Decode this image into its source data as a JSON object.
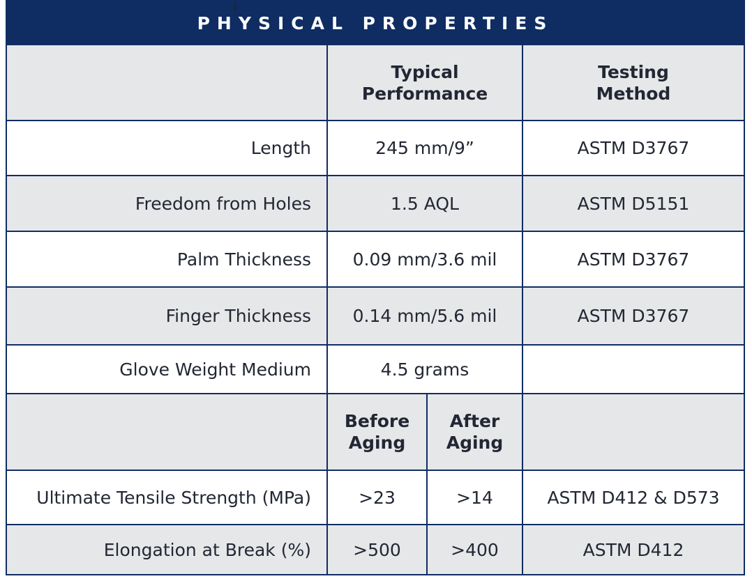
{
  "title": "PHYSICAL PROPERTIES",
  "headers": {
    "typical": [
      "Typical",
      "Performance"
    ],
    "testing": [
      "Testing",
      "Method"
    ],
    "before": [
      "Before",
      "Aging"
    ],
    "after": [
      "After",
      "Aging"
    ]
  },
  "rows": [
    {
      "label": "Length",
      "value": "245 mm/9”",
      "method": "ASTM D3767"
    },
    {
      "label": "Freedom from Holes",
      "value": "1.5 AQL",
      "method": "ASTM D5151"
    },
    {
      "label": "Palm Thickness",
      "value": "0.09 mm/3.6 mil",
      "method": "ASTM D3767"
    },
    {
      "label": "Finger Thickness",
      "value": "0.14 mm/5.6 mil",
      "method": "ASTM D3767"
    },
    {
      "label": "Glove Weight Medium",
      "value": "4.5 grams",
      "method": ""
    }
  ],
  "aging_rows": [
    {
      "label": "Ultimate Tensile Strength (MPa)",
      "before": ">23",
      "after": ">14",
      "method": "ASTM D412 & D573"
    },
    {
      "label": "Elongation at Break (%)",
      "before": ">500",
      "after": ">400",
      "method": "ASTM D412"
    }
  ],
  "colors": {
    "navy": "#0f2d63",
    "row_gray": "#e6e7e9",
    "row_white": "#ffffff"
  }
}
